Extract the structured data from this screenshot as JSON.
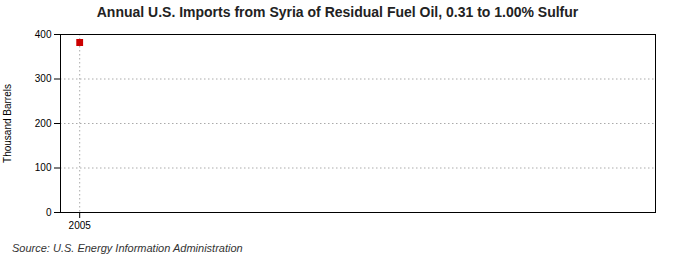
{
  "chart_data": {
    "type": "scatter",
    "title": "Annual U.S. Imports from Syria of Residual Fuel Oil, 0.31 to 1.00% Sulfur",
    "ylabel": "Thousand Barrels",
    "caption": "Source: U.S. Energy Information Administration",
    "x": [
      2005
    ],
    "values": [
      382
    ],
    "color": "#cc0000",
    "marker": "square",
    "xlim": [
      2004.4,
      2023
    ],
    "ylim": [
      0,
      400
    ],
    "xticks": [
      2005
    ],
    "yticks": [
      0,
      100,
      200,
      300,
      400
    ],
    "grid": true
  }
}
